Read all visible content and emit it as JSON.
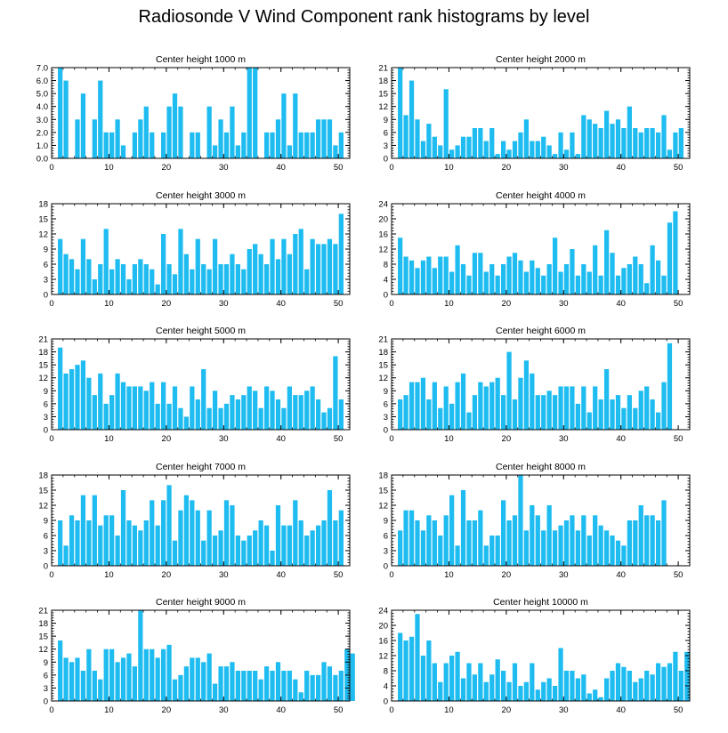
{
  "title": "Radiosonde V Wind Component rank histograms by level",
  "colors": {
    "bar": "#1ebcf0",
    "bar_stroke": "#ffffff",
    "axis": "#000000"
  },
  "chart_data": [
    {
      "type": "bar",
      "title": "Center height 1000 m",
      "ylim": [
        0,
        7
      ],
      "yticks": [
        "0.0",
        "1.0",
        "2.0",
        "3.0",
        "4.0",
        "5.0",
        "6.0",
        "7.0"
      ],
      "xlim": [
        0,
        52
      ],
      "xticks": [
        0,
        10,
        20,
        30,
        40,
        50
      ],
      "values": [
        0,
        7,
        6,
        0,
        3,
        5,
        0,
        3,
        6,
        2,
        2,
        3,
        1,
        0,
        2,
        3,
        4,
        2,
        0,
        2,
        4,
        5,
        4,
        0,
        2,
        2,
        0,
        4,
        1,
        3,
        2,
        4,
        1,
        2,
        7,
        7,
        0,
        2,
        2,
        3,
        5,
        1,
        5,
        2,
        2,
        2,
        3,
        3,
        3,
        1,
        2,
        0
      ]
    },
    {
      "type": "bar",
      "title": "Center height 2000 m",
      "ylim": [
        0,
        21
      ],
      "yticks": [
        "0",
        "3",
        "6",
        "9",
        "12",
        "15",
        "18",
        "21"
      ],
      "xlim": [
        0,
        52
      ],
      "xticks": [
        0,
        10,
        20,
        30,
        40,
        50
      ],
      "values": [
        0,
        21,
        10,
        18,
        9,
        4,
        8,
        5,
        3,
        16,
        2,
        3,
        5,
        5,
        7,
        7,
        4,
        7,
        1,
        4,
        2,
        4,
        6,
        9,
        4,
        4,
        5,
        3,
        1,
        6,
        2,
        6,
        1,
        10,
        9,
        8,
        7,
        11,
        8,
        9,
        7,
        12,
        7,
        6,
        7,
        7,
        6,
        10,
        2,
        6,
        7,
        0
      ]
    },
    {
      "type": "bar",
      "title": "Center height 3000 m",
      "ylim": [
        0,
        18
      ],
      "yticks": [
        "0",
        "3",
        "6",
        "9",
        "12",
        "15",
        "18"
      ],
      "xlim": [
        0,
        52
      ],
      "xticks": [
        0,
        10,
        20,
        30,
        40,
        50
      ],
      "values": [
        0,
        11,
        8,
        7,
        5,
        11,
        7,
        3,
        6,
        13,
        5,
        7,
        6,
        3,
        6,
        7,
        6,
        5,
        2,
        12,
        6,
        4,
        13,
        8,
        5,
        11,
        6,
        5,
        11,
        6,
        6,
        8,
        6,
        5,
        9,
        10,
        8,
        6,
        11,
        7,
        11,
        8,
        12,
        13,
        5,
        11,
        10,
        10,
        11,
        10,
        16,
        0
      ]
    },
    {
      "type": "bar",
      "title": "Center height 4000 m",
      "ylim": [
        0,
        24
      ],
      "yticks": [
        "0",
        "4",
        "8",
        "12",
        "16",
        "20",
        "24"
      ],
      "xlim": [
        0,
        52
      ],
      "xticks": [
        0,
        10,
        20,
        30,
        40,
        50
      ],
      "values": [
        0,
        15,
        10,
        9,
        7,
        9,
        10,
        7,
        10,
        10,
        6,
        13,
        8,
        5,
        11,
        11,
        6,
        8,
        5,
        8,
        10,
        11,
        9,
        6,
        9,
        7,
        5,
        8,
        15,
        6,
        8,
        12,
        5,
        8,
        6,
        13,
        5,
        17,
        11,
        5,
        7,
        8,
        10,
        8,
        3,
        13,
        9,
        5,
        19,
        22,
        0,
        0
      ]
    },
    {
      "type": "bar",
      "title": "Center height 5000 m",
      "ylim": [
        0,
        21
      ],
      "yticks": [
        "0",
        "3",
        "6",
        "9",
        "12",
        "15",
        "18",
        "21"
      ],
      "xlim": [
        0,
        52
      ],
      "xticks": [
        0,
        10,
        20,
        30,
        40,
        50
      ],
      "values": [
        0,
        19,
        13,
        14,
        15,
        16,
        12,
        8,
        13,
        6,
        8,
        13,
        11,
        10,
        10,
        10,
        9,
        11,
        6,
        11,
        6,
        10,
        5,
        3,
        10,
        7,
        14,
        5,
        9,
        5,
        6,
        8,
        7,
        8,
        10,
        9,
        5,
        10,
        9,
        7,
        5,
        10,
        8,
        8,
        9,
        10,
        7,
        4,
        5,
        17,
        7,
        0
      ]
    },
    {
      "type": "bar",
      "title": "Center height 6000 m",
      "ylim": [
        0,
        21
      ],
      "yticks": [
        "0",
        "3",
        "6",
        "9",
        "12",
        "15",
        "18",
        "21"
      ],
      "xlim": [
        0,
        52
      ],
      "xticks": [
        0,
        10,
        20,
        30,
        40,
        50
      ],
      "values": [
        0,
        7,
        8,
        11,
        11,
        12,
        7,
        11,
        5,
        10,
        6,
        11,
        13,
        4,
        8,
        11,
        10,
        11,
        12,
        8,
        18,
        7,
        12,
        16,
        13,
        8,
        8,
        9,
        8,
        10,
        10,
        10,
        6,
        10,
        4,
        10,
        7,
        14,
        7,
        8,
        5,
        8,
        5,
        9,
        10,
        7,
        4,
        11,
        20,
        0,
        0,
        0
      ]
    },
    {
      "type": "bar",
      "title": "Center height 7000 m",
      "ylim": [
        0,
        18
      ],
      "yticks": [
        "0",
        "3",
        "6",
        "9",
        "12",
        "15",
        "18"
      ],
      "xlim": [
        0,
        52
      ],
      "xticks": [
        0,
        10,
        20,
        30,
        40,
        50
      ],
      "values": [
        0,
        9,
        4,
        10,
        9,
        14,
        9,
        14,
        8,
        10,
        10,
        6,
        15,
        9,
        8,
        7,
        9,
        13,
        8,
        13,
        16,
        5,
        11,
        14,
        13,
        11,
        5,
        11,
        6,
        7,
        13,
        12,
        6,
        5,
        6,
        7,
        9,
        8,
        3,
        12,
        8,
        8,
        13,
        9,
        6,
        7,
        8,
        9,
        15,
        9,
        11,
        0
      ]
    },
    {
      "type": "bar",
      "title": "Center height 8000 m",
      "ylim": [
        0,
        18
      ],
      "yticks": [
        "0",
        "3",
        "6",
        "9",
        "12",
        "15",
        "18"
      ],
      "xlim": [
        0,
        52
      ],
      "xticks": [
        0,
        10,
        20,
        30,
        40,
        50
      ],
      "values": [
        0,
        7,
        11,
        11,
        9,
        7,
        10,
        9,
        6,
        10,
        14,
        4,
        15,
        9,
        9,
        11,
        4,
        6,
        6,
        13,
        9,
        10,
        18,
        7,
        12,
        10,
        7,
        12,
        7,
        8,
        9,
        10,
        7,
        10,
        6,
        10,
        8,
        7,
        6,
        5,
        4,
        9,
        9,
        12,
        10,
        10,
        9,
        13,
        0,
        0,
        0,
        0
      ]
    },
    {
      "type": "bar",
      "title": "Center height 9000 m",
      "ylim": [
        0,
        21
      ],
      "yticks": [
        "0",
        "3",
        "6",
        "9",
        "12",
        "15",
        "18",
        "21"
      ],
      "xlim": [
        0,
        52
      ],
      "xticks": [
        0,
        10,
        20,
        30,
        40,
        50
      ],
      "values": [
        0,
        14,
        10,
        9,
        10,
        7,
        12,
        7,
        5,
        12,
        12,
        9,
        10,
        11,
        8,
        21,
        12,
        12,
        10,
        12,
        13,
        5,
        6,
        8,
        10,
        10,
        9,
        11,
        4,
        8,
        8,
        9,
        7,
        7,
        7,
        7,
        5,
        8,
        7,
        9,
        7,
        7,
        5,
        2,
        7,
        6,
        6,
        9,
        8,
        6,
        7,
        12,
        11
      ]
    },
    {
      "type": "bar",
      "title": "Center height 10000 m",
      "ylim": [
        0,
        24
      ],
      "yticks": [
        "0",
        "4",
        "8",
        "12",
        "16",
        "20",
        "24"
      ],
      "xlim": [
        0,
        52
      ],
      "xticks": [
        0,
        10,
        20,
        30,
        40,
        50
      ],
      "values": [
        0,
        18,
        16,
        17,
        23,
        12,
        16,
        10,
        5,
        10,
        12,
        13,
        6,
        10,
        7,
        10,
        5,
        7,
        11,
        8,
        5,
        10,
        4,
        5,
        10,
        3,
        5,
        6,
        4,
        14,
        8,
        8,
        6,
        7,
        2,
        3,
        1,
        6,
        8,
        10,
        9,
        8,
        5,
        6,
        8,
        7,
        10,
        9,
        10,
        13,
        8,
        13
      ]
    }
  ]
}
